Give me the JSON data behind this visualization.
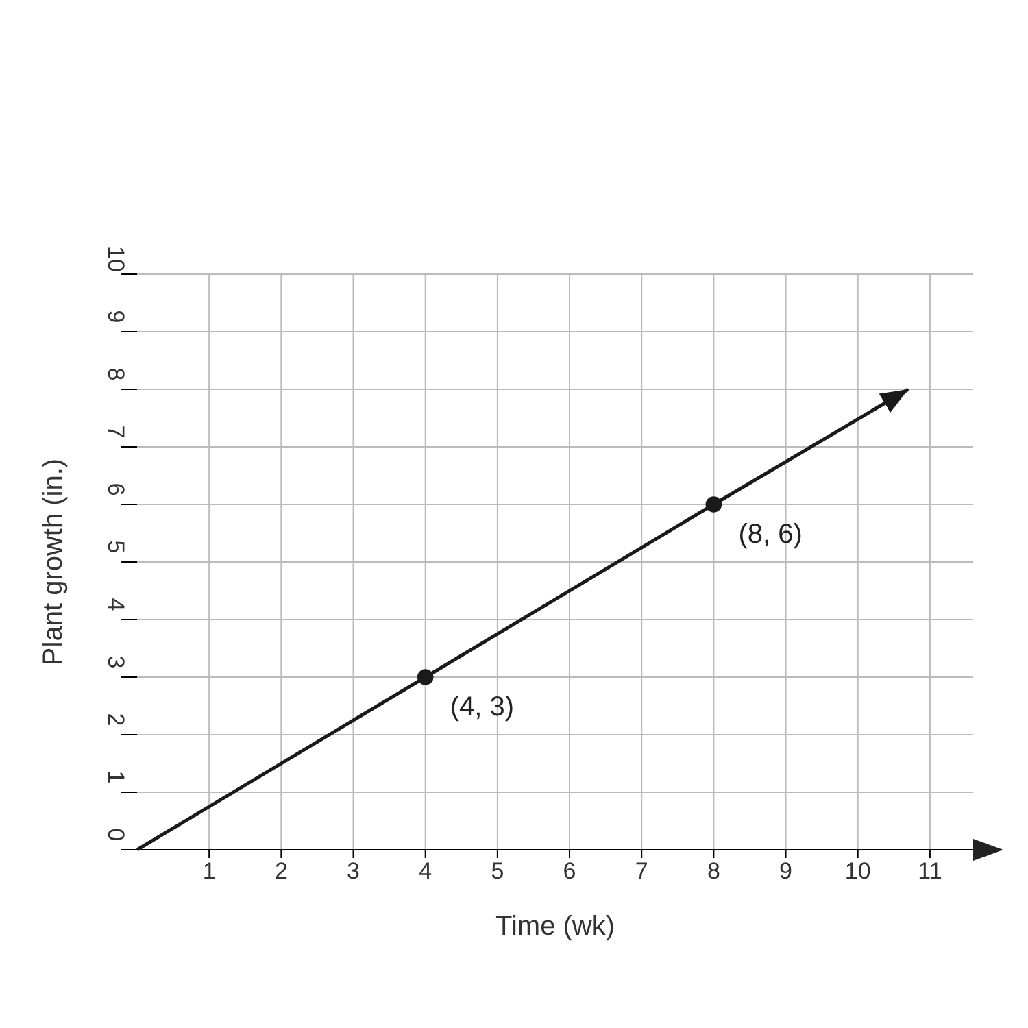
{
  "chart_data": {
    "type": "line",
    "xlabel": "Time (wk)",
    "ylabel": "Plant growth (in.)",
    "xlim": [
      0,
      11.6
    ],
    "ylim": [
      0,
      10
    ],
    "xticks": [
      1,
      2,
      3,
      4,
      5,
      6,
      7,
      8,
      9,
      10,
      11
    ],
    "yticks": [
      0,
      1,
      2,
      3,
      4,
      5,
      6,
      7,
      8,
      9,
      10
    ],
    "grid": true,
    "series": [
      {
        "color": "#1a1a1a",
        "x": [
          0,
          4,
          8,
          10.7
        ],
        "values": [
          0,
          3,
          6,
          8
        ],
        "marker": "none"
      },
      {
        "type": "scatter",
        "color": "#1a1a1a",
        "x": [
          4,
          8
        ],
        "values": [
          3,
          6
        ],
        "marker": "circle"
      }
    ],
    "annotations": [
      {
        "text": "(4, 3)",
        "x": 4,
        "y": 3
      },
      {
        "text": "(8, 6)",
        "x": 8,
        "y": 6
      }
    ]
  }
}
